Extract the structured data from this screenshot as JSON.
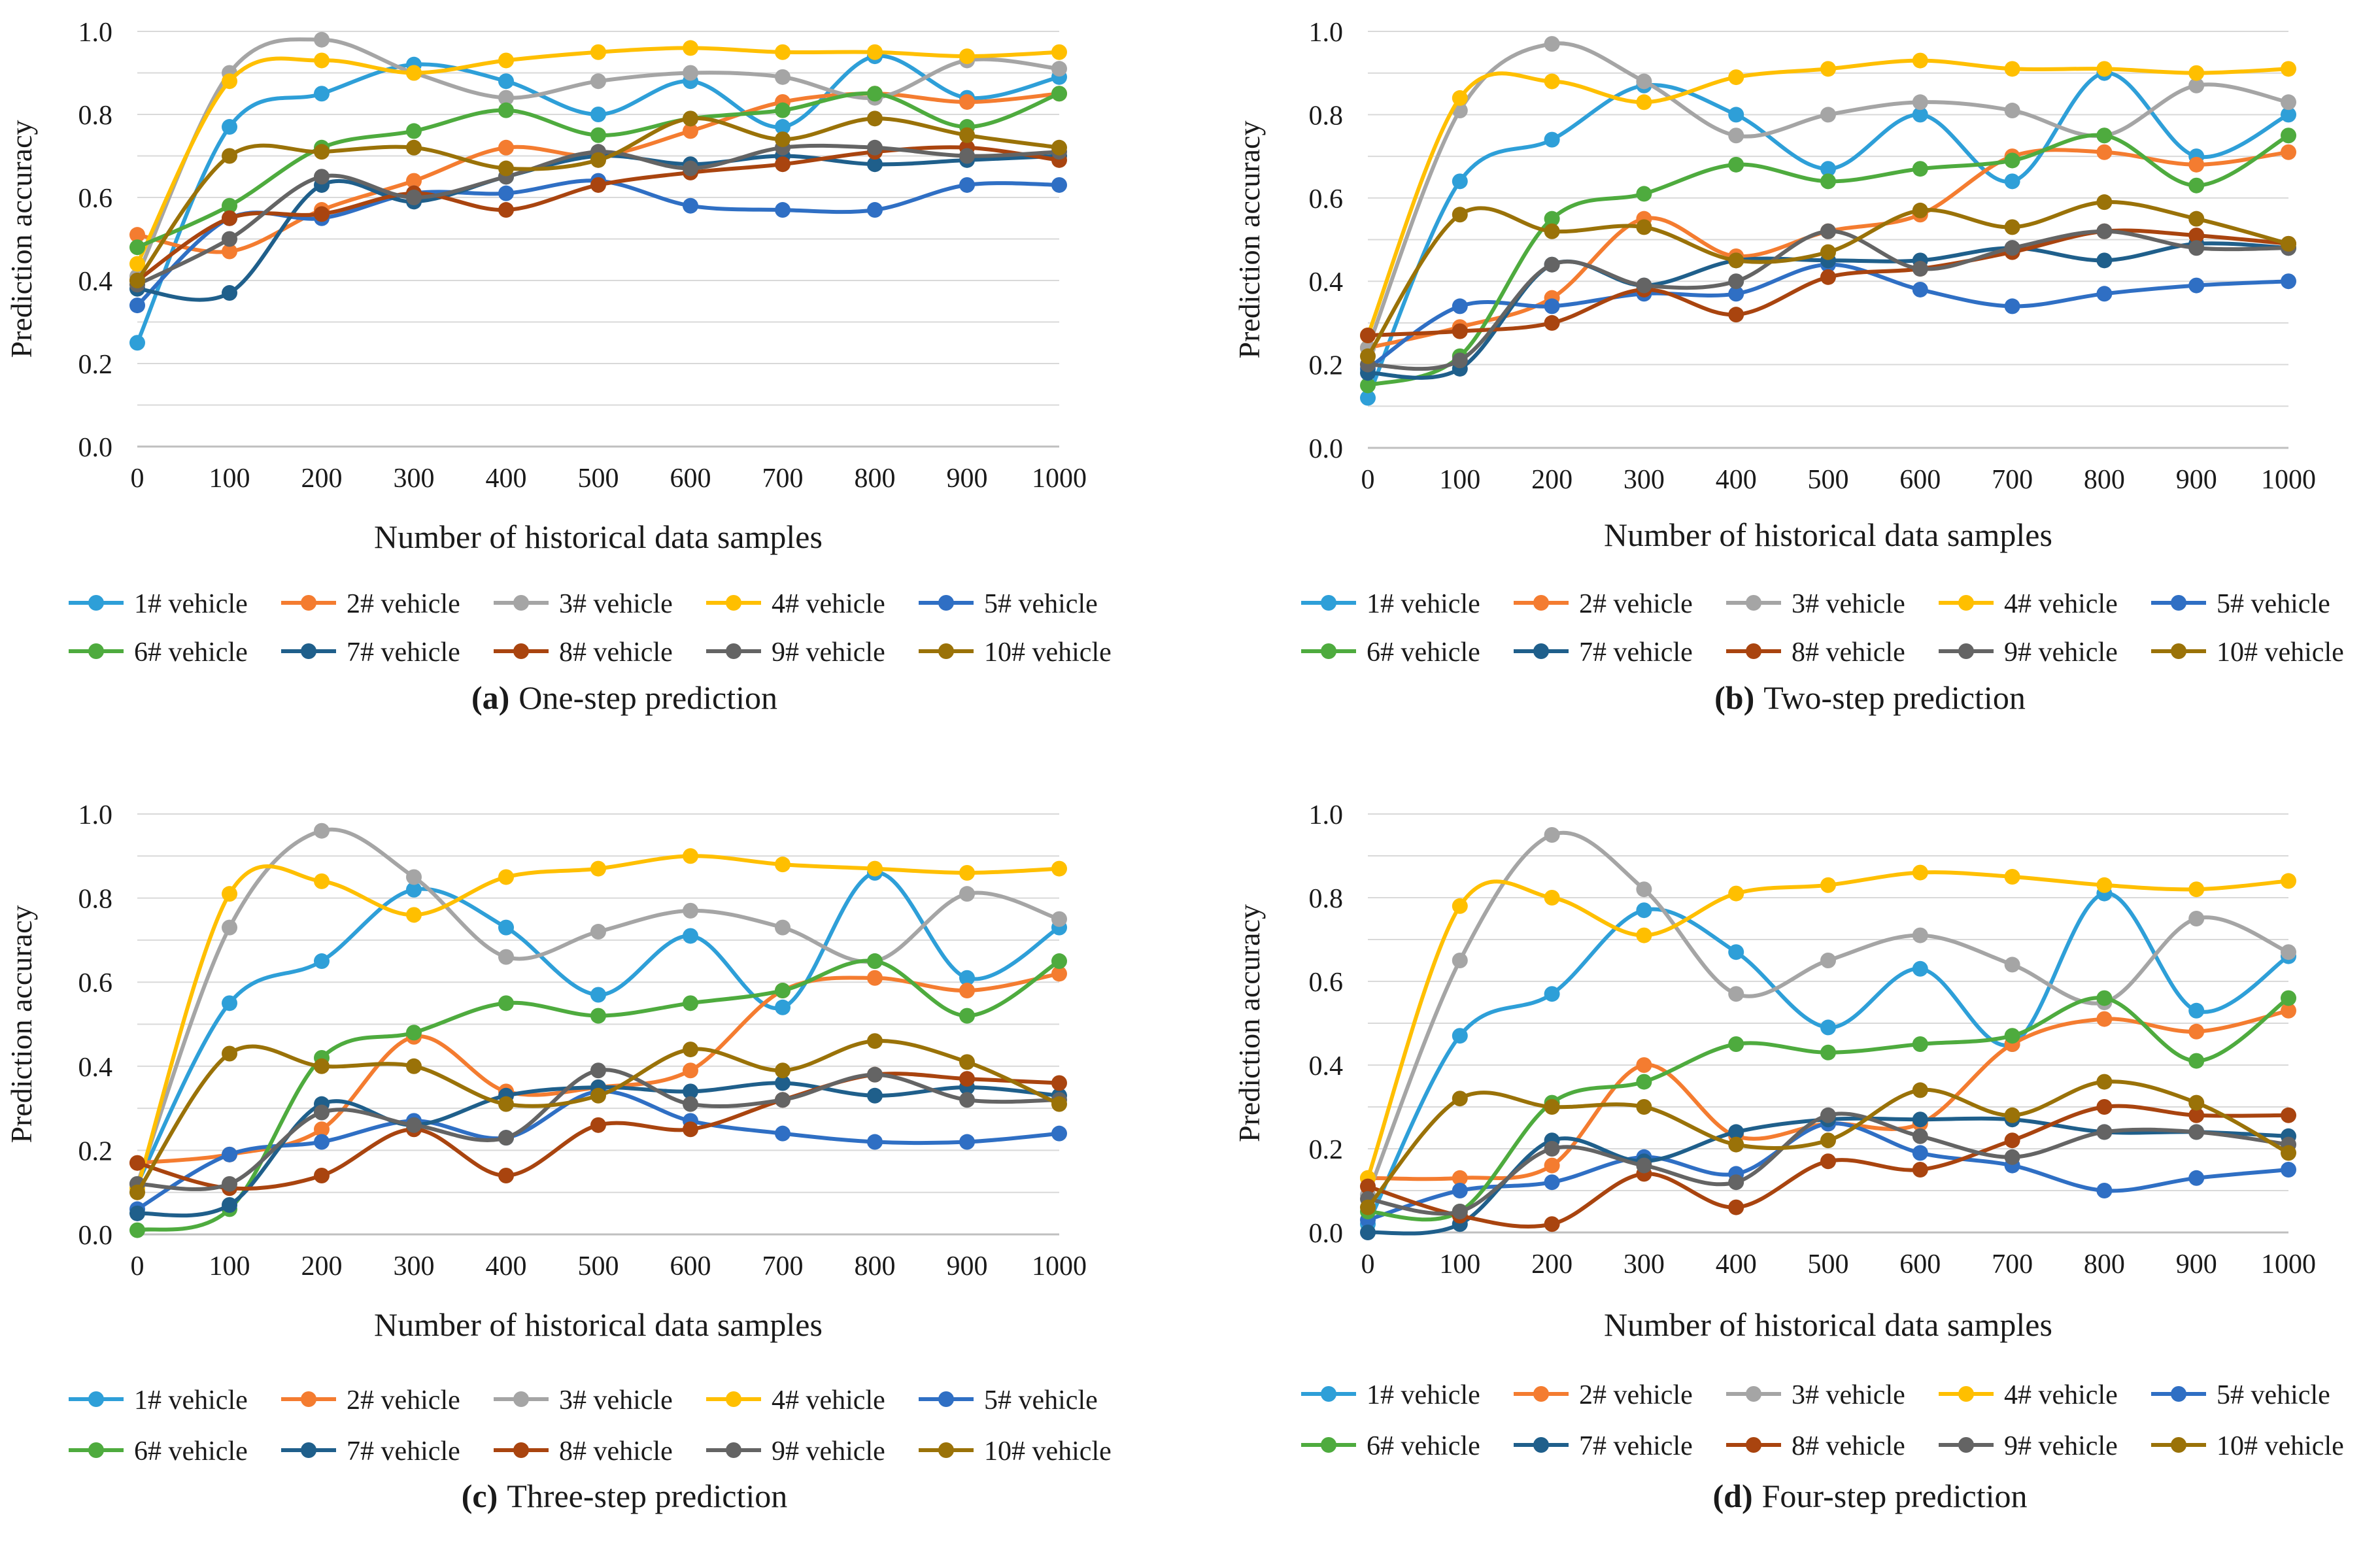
{
  "figure": {
    "series_colors": [
      "#2e9fd8",
      "#f47c30",
      "#a5a5a5",
      "#ffbf00",
      "#2f6fc4",
      "#4eab3e",
      "#1f5f8b",
      "#a9440f",
      "#646464",
      "#9a7208"
    ],
    "grid_color": "#d9d9d9",
    "axis_color": "#bfbfbf"
  },
  "chart_data": [
    {
      "type": "line",
      "panel_label": "(a)",
      "caption": "One-step prediction",
      "xlabel": "Number of historical data samples",
      "ylabel": "Prediction accuracy",
      "x": [
        0,
        100,
        200,
        300,
        400,
        500,
        600,
        700,
        800,
        900,
        1000
      ],
      "x_tick_labels": [
        "0",
        "100",
        "200",
        "300",
        "400",
        "500",
        "600",
        "700",
        "800",
        "900",
        "1000"
      ],
      "ylim": [
        0,
        1
      ],
      "y_tick_labels": [
        "0.0",
        "0.2",
        "0.4",
        "0.6",
        "0.8",
        "1.0"
      ],
      "grid": true,
      "legend_position": "bottom",
      "series": [
        {
          "name": "1# vehicle",
          "values": [
            0.25,
            0.77,
            0.85,
            0.92,
            0.88,
            0.8,
            0.88,
            0.77,
            0.94,
            0.84,
            0.89
          ]
        },
        {
          "name": "2# vehicle",
          "values": [
            0.51,
            0.47,
            0.57,
            0.64,
            0.72,
            0.7,
            0.76,
            0.83,
            0.85,
            0.83,
            0.85
          ]
        },
        {
          "name": "3# vehicle",
          "values": [
            0.41,
            0.9,
            0.98,
            0.9,
            0.84,
            0.88,
            0.9,
            0.89,
            0.84,
            0.93,
            0.91
          ]
        },
        {
          "name": "4# vehicle",
          "values": [
            0.44,
            0.88,
            0.93,
            0.9,
            0.93,
            0.95,
            0.96,
            0.95,
            0.95,
            0.94,
            0.95
          ]
        },
        {
          "name": "5# vehicle",
          "values": [
            0.34,
            0.55,
            0.55,
            0.61,
            0.61,
            0.64,
            0.58,
            0.57,
            0.57,
            0.63,
            0.63
          ]
        },
        {
          "name": "6# vehicle",
          "values": [
            0.48,
            0.58,
            0.72,
            0.76,
            0.81,
            0.75,
            0.79,
            0.81,
            0.85,
            0.77,
            0.85
          ]
        },
        {
          "name": "7# vehicle",
          "values": [
            0.38,
            0.37,
            0.63,
            0.59,
            0.65,
            0.7,
            0.68,
            0.7,
            0.68,
            0.69,
            0.7
          ]
        },
        {
          "name": "8# vehicle",
          "values": [
            0.4,
            0.55,
            0.56,
            0.61,
            0.57,
            0.63,
            0.66,
            0.68,
            0.71,
            0.72,
            0.69
          ]
        },
        {
          "name": "9# vehicle",
          "values": [
            0.39,
            0.5,
            0.65,
            0.6,
            0.65,
            0.71,
            0.67,
            0.72,
            0.72,
            0.7,
            0.71
          ]
        },
        {
          "name": "10# vehicle",
          "values": [
            0.4,
            0.7,
            0.71,
            0.72,
            0.67,
            0.69,
            0.79,
            0.74,
            0.79,
            0.75,
            0.72
          ]
        }
      ]
    },
    {
      "type": "line",
      "panel_label": "(b)",
      "caption": "Two-step prediction",
      "xlabel": "Number of historical data samples",
      "ylabel": "Prediction accuracy",
      "x": [
        0,
        100,
        200,
        300,
        400,
        500,
        600,
        700,
        800,
        900,
        1000
      ],
      "x_tick_labels": [
        "0",
        "100",
        "200",
        "300",
        "400",
        "500",
        "600",
        "700",
        "800",
        "900",
        "1000"
      ],
      "ylim": [
        0,
        1
      ],
      "y_tick_labels": [
        "0.0",
        "0.2",
        "0.4",
        "0.6",
        "0.8",
        "1.0"
      ],
      "grid": true,
      "legend_position": "bottom",
      "series": [
        {
          "name": "1# vehicle",
          "values": [
            0.12,
            0.64,
            0.74,
            0.87,
            0.8,
            0.67,
            0.8,
            0.64,
            0.9,
            0.7,
            0.8
          ]
        },
        {
          "name": "2# vehicle",
          "values": [
            0.24,
            0.29,
            0.36,
            0.55,
            0.46,
            0.52,
            0.56,
            0.7,
            0.71,
            0.68,
            0.71
          ]
        },
        {
          "name": "3# vehicle",
          "values": [
            0.24,
            0.81,
            0.97,
            0.88,
            0.75,
            0.8,
            0.83,
            0.81,
            0.75,
            0.87,
            0.83
          ]
        },
        {
          "name": "4# vehicle",
          "values": [
            0.27,
            0.84,
            0.88,
            0.83,
            0.89,
            0.91,
            0.93,
            0.91,
            0.91,
            0.9,
            0.91
          ]
        },
        {
          "name": "5# vehicle",
          "values": [
            0.19,
            0.34,
            0.34,
            0.37,
            0.37,
            0.44,
            0.38,
            0.34,
            0.37,
            0.39,
            0.4
          ]
        },
        {
          "name": "6# vehicle",
          "values": [
            0.15,
            0.22,
            0.55,
            0.61,
            0.68,
            0.64,
            0.67,
            0.69,
            0.75,
            0.63,
            0.75
          ]
        },
        {
          "name": "7# vehicle",
          "values": [
            0.18,
            0.19,
            0.44,
            0.39,
            0.45,
            0.45,
            0.45,
            0.48,
            0.45,
            0.49,
            0.48
          ]
        },
        {
          "name": "8# vehicle",
          "values": [
            0.27,
            0.28,
            0.3,
            0.38,
            0.32,
            0.41,
            0.43,
            0.47,
            0.52,
            0.51,
            0.49
          ]
        },
        {
          "name": "9# vehicle",
          "values": [
            0.2,
            0.21,
            0.44,
            0.39,
            0.4,
            0.52,
            0.43,
            0.48,
            0.52,
            0.48,
            0.48
          ]
        },
        {
          "name": "10# vehicle",
          "values": [
            0.22,
            0.56,
            0.52,
            0.53,
            0.45,
            0.47,
            0.57,
            0.53,
            0.59,
            0.55,
            0.49
          ]
        }
      ]
    },
    {
      "type": "line",
      "panel_label": "(c)",
      "caption": "Three-step prediction",
      "xlabel": "Number of historical data samples",
      "ylabel": "Prediction accuracy",
      "x": [
        0,
        100,
        200,
        300,
        400,
        500,
        600,
        700,
        800,
        900,
        1000
      ],
      "x_tick_labels": [
        "0",
        "100",
        "200",
        "300",
        "400",
        "500",
        "600",
        "700",
        "800",
        "900",
        "1000"
      ],
      "ylim": [
        0,
        1
      ],
      "y_tick_labels": [
        "0.0",
        "0.2",
        "0.4",
        "0.6",
        "0.8",
        "1.0"
      ],
      "grid": true,
      "legend_position": "bottom",
      "series": [
        {
          "name": "1# vehicle",
          "values": [
            0.12,
            0.55,
            0.65,
            0.82,
            0.73,
            0.57,
            0.71,
            0.54,
            0.86,
            0.61,
            0.73
          ]
        },
        {
          "name": "2# vehicle",
          "values": [
            0.17,
            0.19,
            0.25,
            0.47,
            0.34,
            0.35,
            0.39,
            0.58,
            0.61,
            0.58,
            0.62
          ]
        },
        {
          "name": "3# vehicle",
          "values": [
            0.12,
            0.73,
            0.96,
            0.85,
            0.66,
            0.72,
            0.77,
            0.73,
            0.65,
            0.81,
            0.75
          ]
        },
        {
          "name": "4# vehicle",
          "values": [
            0.11,
            0.81,
            0.84,
            0.76,
            0.85,
            0.87,
            0.9,
            0.88,
            0.87,
            0.86,
            0.87
          ]
        },
        {
          "name": "5# vehicle",
          "values": [
            0.06,
            0.19,
            0.22,
            0.27,
            0.23,
            0.34,
            0.27,
            0.24,
            0.22,
            0.22,
            0.24
          ]
        },
        {
          "name": "6# vehicle",
          "values": [
            0.01,
            0.06,
            0.42,
            0.48,
            0.55,
            0.52,
            0.55,
            0.58,
            0.65,
            0.52,
            0.65
          ]
        },
        {
          "name": "7# vehicle",
          "values": [
            0.05,
            0.07,
            0.31,
            0.26,
            0.33,
            0.35,
            0.34,
            0.36,
            0.33,
            0.35,
            0.33
          ]
        },
        {
          "name": "8# vehicle",
          "values": [
            0.17,
            0.11,
            0.14,
            0.25,
            0.14,
            0.26,
            0.25,
            0.32,
            0.38,
            0.37,
            0.36
          ]
        },
        {
          "name": "9# vehicle",
          "values": [
            0.12,
            0.12,
            0.29,
            0.26,
            0.23,
            0.39,
            0.31,
            0.32,
            0.38,
            0.32,
            0.32
          ]
        },
        {
          "name": "10# vehicle",
          "values": [
            0.1,
            0.43,
            0.4,
            0.4,
            0.31,
            0.33,
            0.44,
            0.39,
            0.46,
            0.41,
            0.31
          ]
        }
      ]
    },
    {
      "type": "line",
      "panel_label": "(d)",
      "caption": "Four-step prediction",
      "xlabel": "Number of historical data samples",
      "ylabel": "Prediction accuracy",
      "x": [
        0,
        100,
        200,
        300,
        400,
        500,
        600,
        700,
        800,
        900,
        1000
      ],
      "x_tick_labels": [
        "0",
        "100",
        "200",
        "300",
        "400",
        "500",
        "600",
        "700",
        "800",
        "900",
        "1000"
      ],
      "ylim": [
        0,
        1
      ],
      "y_tick_labels": [
        "0.0",
        "0.2",
        "0.4",
        "0.6",
        "0.8",
        "1.0"
      ],
      "grid": true,
      "legend_position": "bottom",
      "series": [
        {
          "name": "1# vehicle",
          "values": [
            0.02,
            0.47,
            0.57,
            0.77,
            0.67,
            0.49,
            0.63,
            0.45,
            0.81,
            0.53,
            0.66
          ]
        },
        {
          "name": "2# vehicle",
          "values": [
            0.13,
            0.13,
            0.16,
            0.4,
            0.23,
            0.26,
            0.26,
            0.45,
            0.51,
            0.48,
            0.53
          ]
        },
        {
          "name": "3# vehicle",
          "values": [
            0.09,
            0.65,
            0.95,
            0.82,
            0.57,
            0.65,
            0.71,
            0.64,
            0.55,
            0.75,
            0.67
          ]
        },
        {
          "name": "4# vehicle",
          "values": [
            0.13,
            0.78,
            0.8,
            0.71,
            0.81,
            0.83,
            0.86,
            0.85,
            0.83,
            0.82,
            0.84
          ]
        },
        {
          "name": "5# vehicle",
          "values": [
            0.03,
            0.1,
            0.12,
            0.18,
            0.14,
            0.26,
            0.19,
            0.16,
            0.1,
            0.13,
            0.15
          ]
        },
        {
          "name": "6# vehicle",
          "values": [
            0.05,
            0.05,
            0.31,
            0.36,
            0.45,
            0.43,
            0.45,
            0.47,
            0.56,
            0.41,
            0.56
          ]
        },
        {
          "name": "7# vehicle",
          "values": [
            0.0,
            0.02,
            0.22,
            0.17,
            0.24,
            0.27,
            0.27,
            0.27,
            0.24,
            0.24,
            0.23
          ]
        },
        {
          "name": "8# vehicle",
          "values": [
            0.11,
            0.04,
            0.02,
            0.14,
            0.06,
            0.17,
            0.15,
            0.22,
            0.3,
            0.28,
            0.28
          ]
        },
        {
          "name": "9# vehicle",
          "values": [
            0.08,
            0.05,
            0.2,
            0.16,
            0.12,
            0.28,
            0.23,
            0.18,
            0.24,
            0.24,
            0.21
          ]
        },
        {
          "name": "10# vehicle",
          "values": [
            0.06,
            0.32,
            0.3,
            0.3,
            0.21,
            0.22,
            0.34,
            0.28,
            0.36,
            0.31,
            0.19
          ]
        }
      ]
    }
  ]
}
